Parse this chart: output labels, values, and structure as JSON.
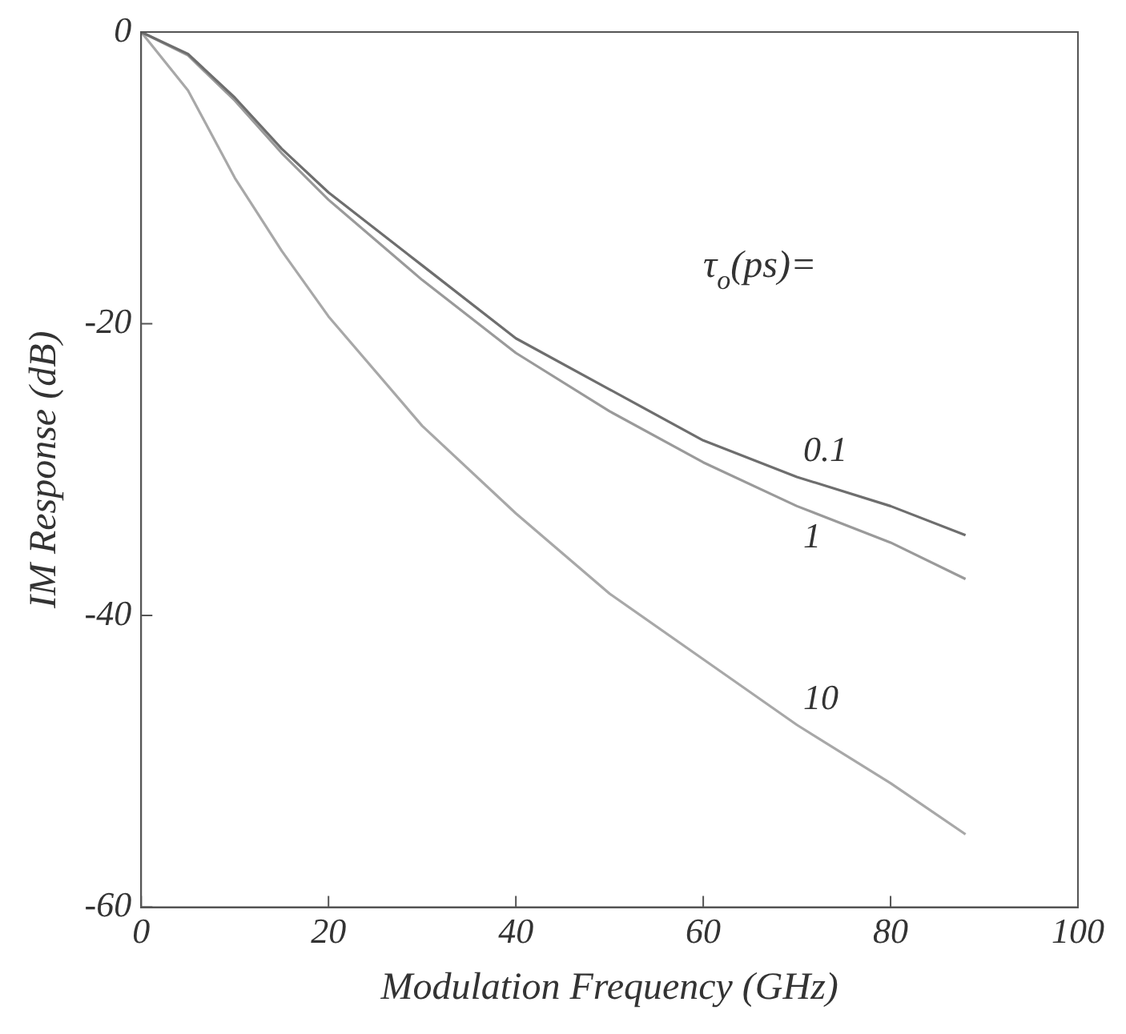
{
  "chart_data": {
    "type": "line",
    "xlabel": "Modulation Frequency (GHz)",
    "ylabel": "IM Response (dB)",
    "x": [
      0,
      5,
      10,
      15,
      20,
      30,
      40,
      50,
      60,
      70,
      80,
      88
    ],
    "series": [
      {
        "name": "0.1",
        "color": "#6e6e6e",
        "values": [
          0,
          -1.5,
          -4.5,
          -8,
          -11,
          -16,
          -21,
          -24.5,
          -28,
          -30.5,
          -32.5,
          -34.5
        ]
      },
      {
        "name": "1",
        "color": "#9a9a9a",
        "values": [
          0,
          -1.6,
          -4.7,
          -8.3,
          -11.5,
          -17,
          -22,
          -26,
          -29.5,
          -32.5,
          -35,
          -37.5
        ]
      },
      {
        "name": "10",
        "color": "#a8a8a8",
        "values": [
          0,
          -4,
          -10,
          -15,
          -19.5,
          -27,
          -33,
          -38.5,
          -43,
          -47.5,
          -51.5,
          -55
        ]
      }
    ],
    "annotations": [
      "τ$_{o}$(ps)="
    ],
    "xlim": [
      0,
      100
    ],
    "xticks": [
      0,
      20,
      40,
      60,
      80,
      100
    ],
    "ylim": [
      -60,
      0
    ],
    "yticks": [
      -60,
      -40,
      -20,
      0
    ],
    "grid": false,
    "legend": false,
    "marker": "none",
    "line_style": "solid"
  }
}
